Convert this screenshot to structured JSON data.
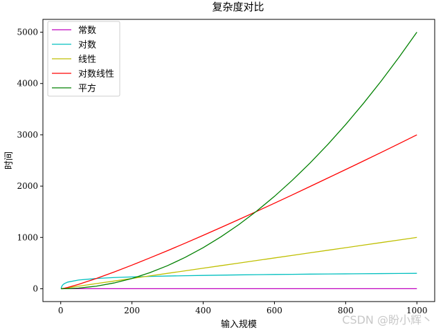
{
  "watermark": "CSDN @盼小辉丶",
  "chart_data": {
    "type": "line",
    "title": "复杂度对比",
    "xlabel": "输入规模",
    "ylabel": "时间",
    "xlim": [
      -50,
      1050
    ],
    "ylim": [
      -250,
      5250
    ],
    "xticks": [
      0,
      200,
      400,
      600,
      800,
      1000
    ],
    "yticks": [
      0,
      1000,
      2000,
      3000,
      4000,
      5000
    ],
    "legend_placement": "top-left",
    "grid": false,
    "x": [
      1,
      2,
      5,
      10,
      20,
      50,
      100,
      150,
      200,
      250,
      300,
      350,
      400,
      450,
      500,
      550,
      600,
      650,
      700,
      750,
      800,
      850,
      900,
      950,
      1000
    ],
    "series": [
      {
        "name": "常数",
        "color": "#bf00bf",
        "values": [
          1,
          1,
          1,
          1,
          1,
          1,
          1,
          1,
          1,
          1,
          1,
          1,
          1,
          1,
          1,
          1,
          1,
          1,
          1,
          1,
          1,
          1,
          1,
          1,
          1
        ]
      },
      {
        "name": "对数",
        "color": "#00bfbf",
        "values": [
          0,
          30,
          70,
          100,
          130,
          170,
          200,
          218,
          230,
          240,
          248,
          254,
          260,
          265,
          270,
          274,
          278,
          281,
          285,
          288,
          290,
          293,
          295,
          298,
          300
        ]
      },
      {
        "name": "线性",
        "color": "#bfbf00",
        "values": [
          1,
          2,
          5,
          10,
          20,
          50,
          100,
          150,
          200,
          250,
          300,
          350,
          400,
          450,
          500,
          550,
          600,
          650,
          700,
          750,
          800,
          850,
          900,
          950,
          1000
        ]
      },
      {
        "name": "对数线性",
        "color": "#ff0000",
        "values": [
          0,
          1,
          3,
          10,
          26,
          85,
          200,
          326,
          460,
          600,
          743,
          890,
          1041,
          1194,
          1349,
          1507,
          1667,
          1829,
          1993,
          2158,
          2323,
          2490,
          2658,
          2828,
          3000
        ]
      },
      {
        "name": "平方",
        "color": "#008000",
        "values": [
          0,
          0,
          0,
          1,
          2,
          13,
          50,
          113,
          200,
          313,
          450,
          613,
          800,
          1013,
          1250,
          1513,
          1800,
          2113,
          2450,
          2813,
          3200,
          3613,
          4050,
          4513,
          5000
        ]
      }
    ]
  }
}
